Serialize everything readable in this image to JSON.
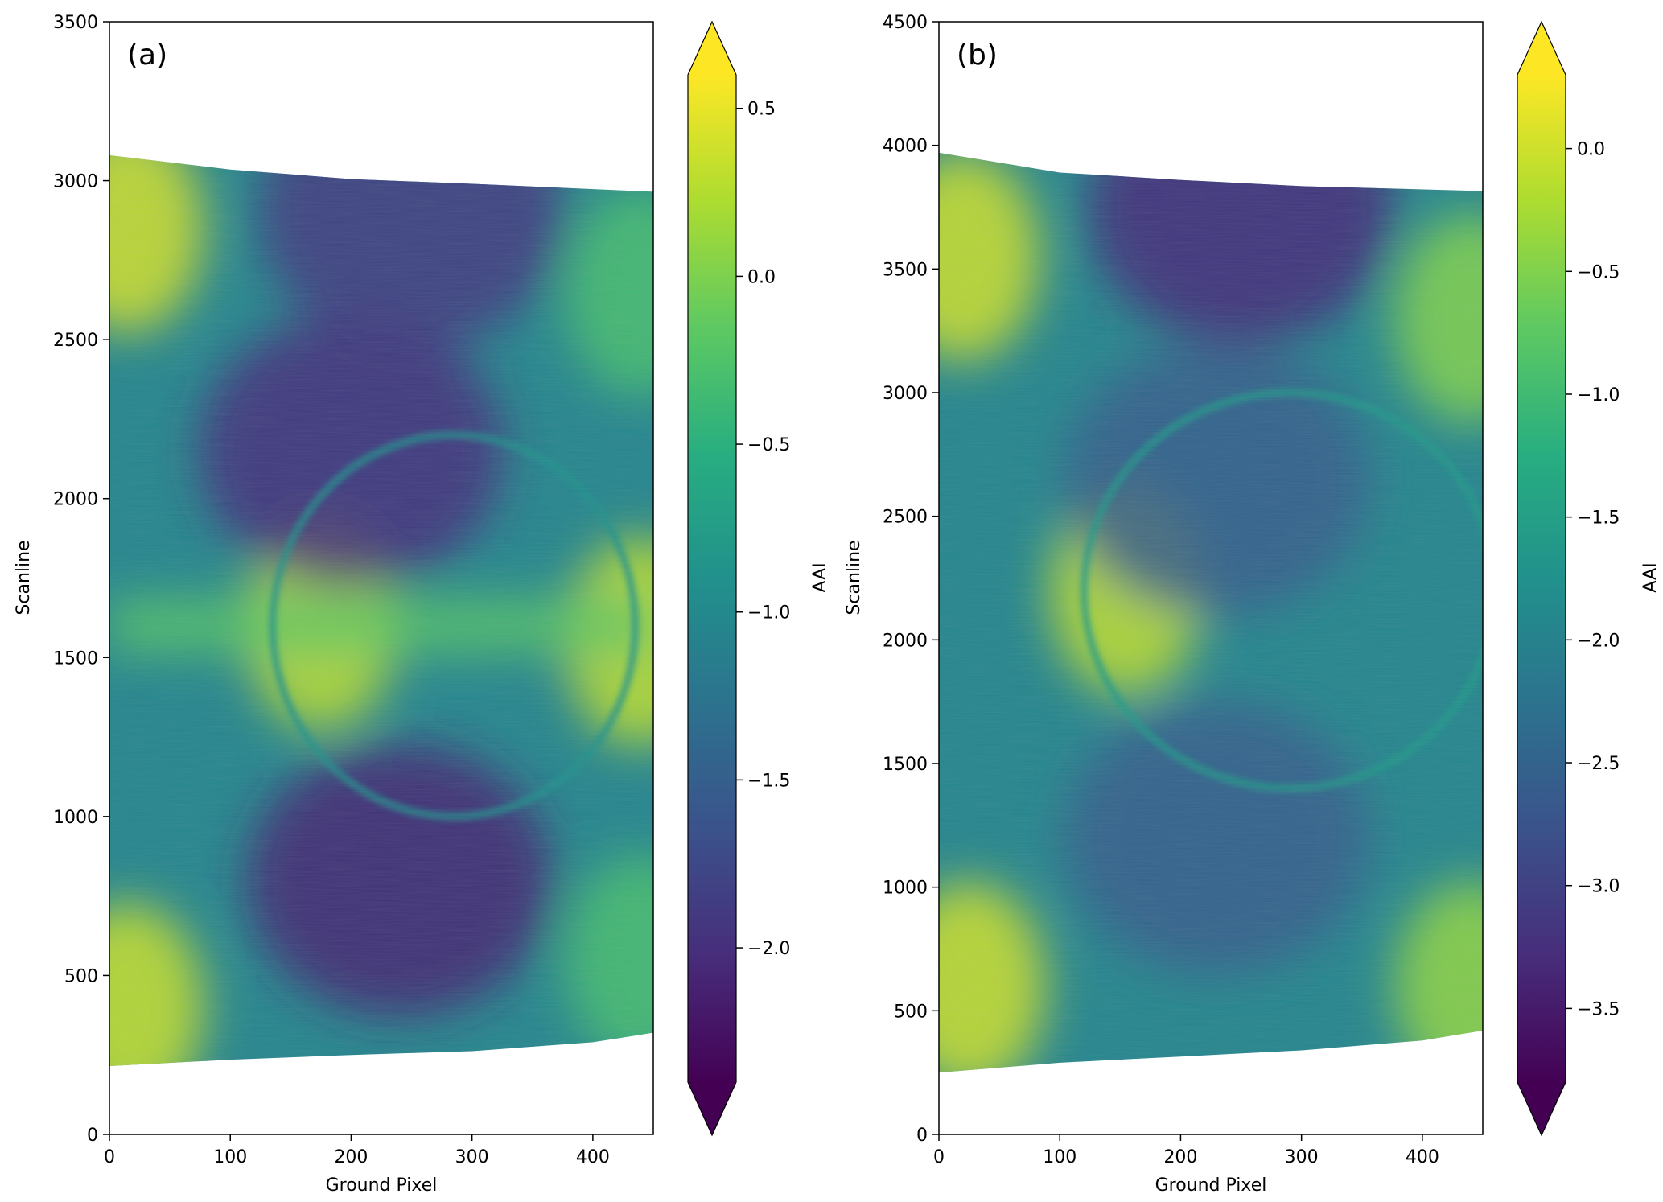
{
  "chart_data": [
    {
      "type": "heatmap",
      "panel_label": "(a)",
      "xlabel": "Ground Pixel",
      "ylabel": "Scanline",
      "xlim": [
        0,
        450
      ],
      "ylim": [
        0,
        3500
      ],
      "xticks": [
        0,
        100,
        200,
        300,
        400
      ],
      "yticks": [
        0,
        500,
        1000,
        1500,
        2000,
        2500,
        3000,
        3500
      ],
      "colorbar": {
        "label": "AAI",
        "colormap": "viridis",
        "range": [
          -2.4,
          0.6
        ],
        "ticks": [
          0.5,
          0.0,
          -0.5,
          -1.0,
          -1.5,
          -2.0
        ],
        "tick_labels": [
          "0.5",
          "0.0",
          "−0.5",
          "−1.0",
          "−1.5",
          "−2.0"
        ],
        "extend": "both"
      },
      "data_coverage": {
        "top_edge": [
          [
            0,
            3080
          ],
          [
            100,
            3035
          ],
          [
            200,
            3005
          ],
          [
            300,
            2990
          ],
          [
            450,
            2965
          ]
        ],
        "bottom_edge": [
          [
            0,
            215
          ],
          [
            100,
            235
          ],
          [
            200,
            250
          ],
          [
            300,
            262
          ],
          [
            400,
            290
          ],
          [
            450,
            320
          ]
        ]
      },
      "features": [
        {
          "type": "blob",
          "x": 15,
          "y": 2850,
          "value": 0.4
        },
        {
          "type": "blob",
          "x": 15,
          "y": 400,
          "value": 0.35
        },
        {
          "type": "blob",
          "x": 440,
          "y": 2650,
          "value": -0.3
        },
        {
          "type": "blob",
          "x": 440,
          "y": 550,
          "value": -0.3
        },
        {
          "type": "blob",
          "x": 175,
          "y": 1600,
          "value": 0.3
        },
        {
          "type": "blob",
          "x": 440,
          "y": 1550,
          "value": 0.3
        },
        {
          "type": "band",
          "y": 1600,
          "value": -0.2
        },
        {
          "type": "low",
          "x": 200,
          "y": 2150,
          "value": -2.0
        },
        {
          "type": "low",
          "x": 240,
          "y": 800,
          "value": -2.1
        },
        {
          "type": "low",
          "x": 250,
          "y": 2900,
          "value": -1.9
        },
        {
          "type": "ring",
          "cx": 285,
          "cy": 1600,
          "rx": 150,
          "ry": 600,
          "value": -0.9
        }
      ]
    },
    {
      "type": "heatmap",
      "panel_label": "(b)",
      "xlabel": "Ground Pixel",
      "ylabel": "Scanline",
      "xlim": [
        0,
        450
      ],
      "ylim": [
        0,
        4500
      ],
      "xticks": [
        0,
        100,
        200,
        300,
        400
      ],
      "yticks": [
        0,
        500,
        1000,
        1500,
        2000,
        2500,
        3000,
        3500,
        4000,
        4500
      ],
      "colorbar": {
        "label": "AAI",
        "colormap": "viridis",
        "range": [
          -3.8,
          0.3
        ],
        "ticks": [
          0.0,
          -0.5,
          -1.0,
          -1.5,
          -2.0,
          -2.5,
          -3.0,
          -3.5
        ],
        "tick_labels": [
          "0.0",
          "−0.5",
          "−1.0",
          "−1.5",
          "−2.0",
          "−2.5",
          "−3.0",
          "−3.5"
        ],
        "extend": "both"
      },
      "data_coverage": {
        "top_edge": [
          [
            0,
            3970
          ],
          [
            100,
            3890
          ],
          [
            200,
            3860
          ],
          [
            300,
            3835
          ],
          [
            450,
            3815
          ]
        ],
        "bottom_edge": [
          [
            0,
            250
          ],
          [
            100,
            290
          ],
          [
            200,
            315
          ],
          [
            300,
            340
          ],
          [
            400,
            380
          ],
          [
            450,
            420
          ]
        ]
      },
      "features": [
        {
          "type": "blob",
          "x": 20,
          "y": 3550,
          "value": 0.0
        },
        {
          "type": "blob",
          "x": 25,
          "y": 600,
          "value": 0.0
        },
        {
          "type": "blob",
          "x": 440,
          "y": 3300,
          "value": -0.5
        },
        {
          "type": "blob",
          "x": 440,
          "y": 600,
          "value": -0.4
        },
        {
          "type": "blob",
          "x": 155,
          "y": 2200,
          "value": -0.1
        },
        {
          "type": "low",
          "x": 250,
          "y": 3750,
          "value": -3.3
        },
        {
          "type": "low",
          "x": 230,
          "y": 2650,
          "value": -2.6
        },
        {
          "type": "low",
          "x": 230,
          "y": 1200,
          "value": -2.6
        },
        {
          "type": "ring",
          "cx": 290,
          "cy": 2200,
          "rx": 170,
          "ry": 800,
          "value": -1.6
        }
      ]
    }
  ]
}
